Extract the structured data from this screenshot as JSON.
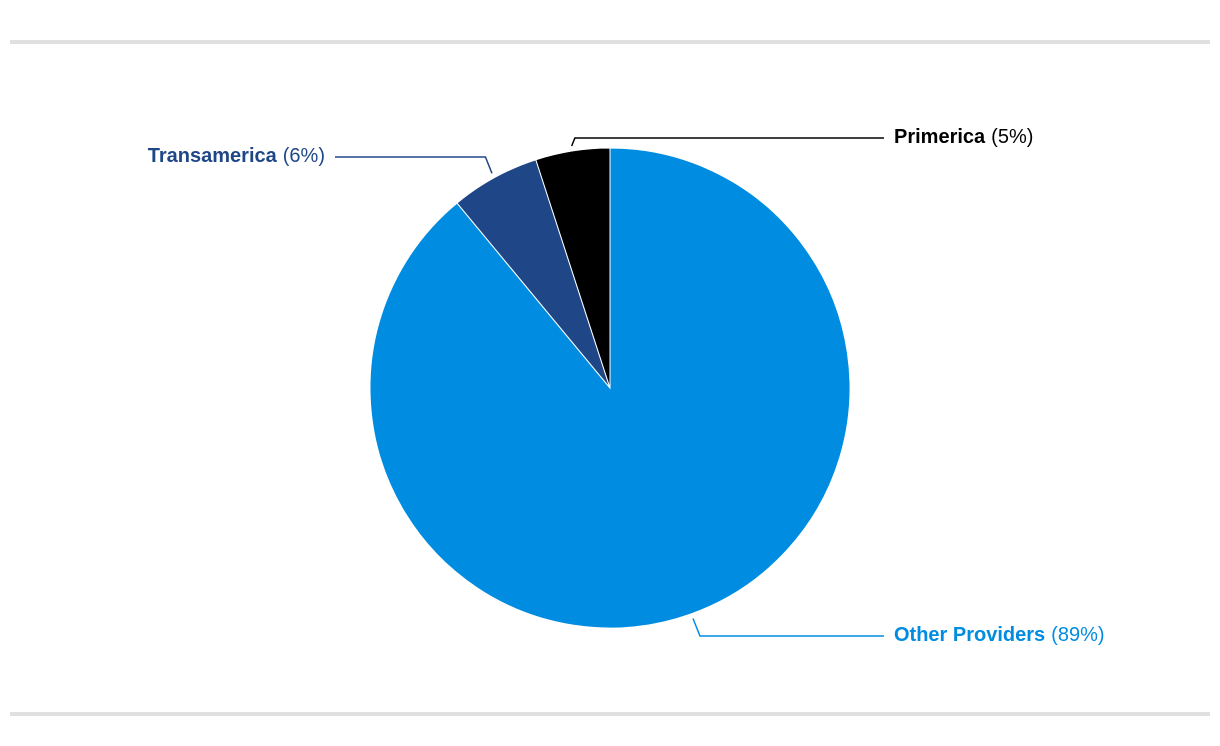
{
  "chart_data": {
    "type": "pie",
    "categories": [
      "Other Providers",
      "Transamerica",
      "Primerica"
    ],
    "values": [
      89,
      6,
      5
    ],
    "value_labels": [
      "(89%)",
      "(6%)",
      "(5%)"
    ],
    "colors": [
      "#008ce0",
      "#1f4788",
      "#000000"
    ]
  }
}
